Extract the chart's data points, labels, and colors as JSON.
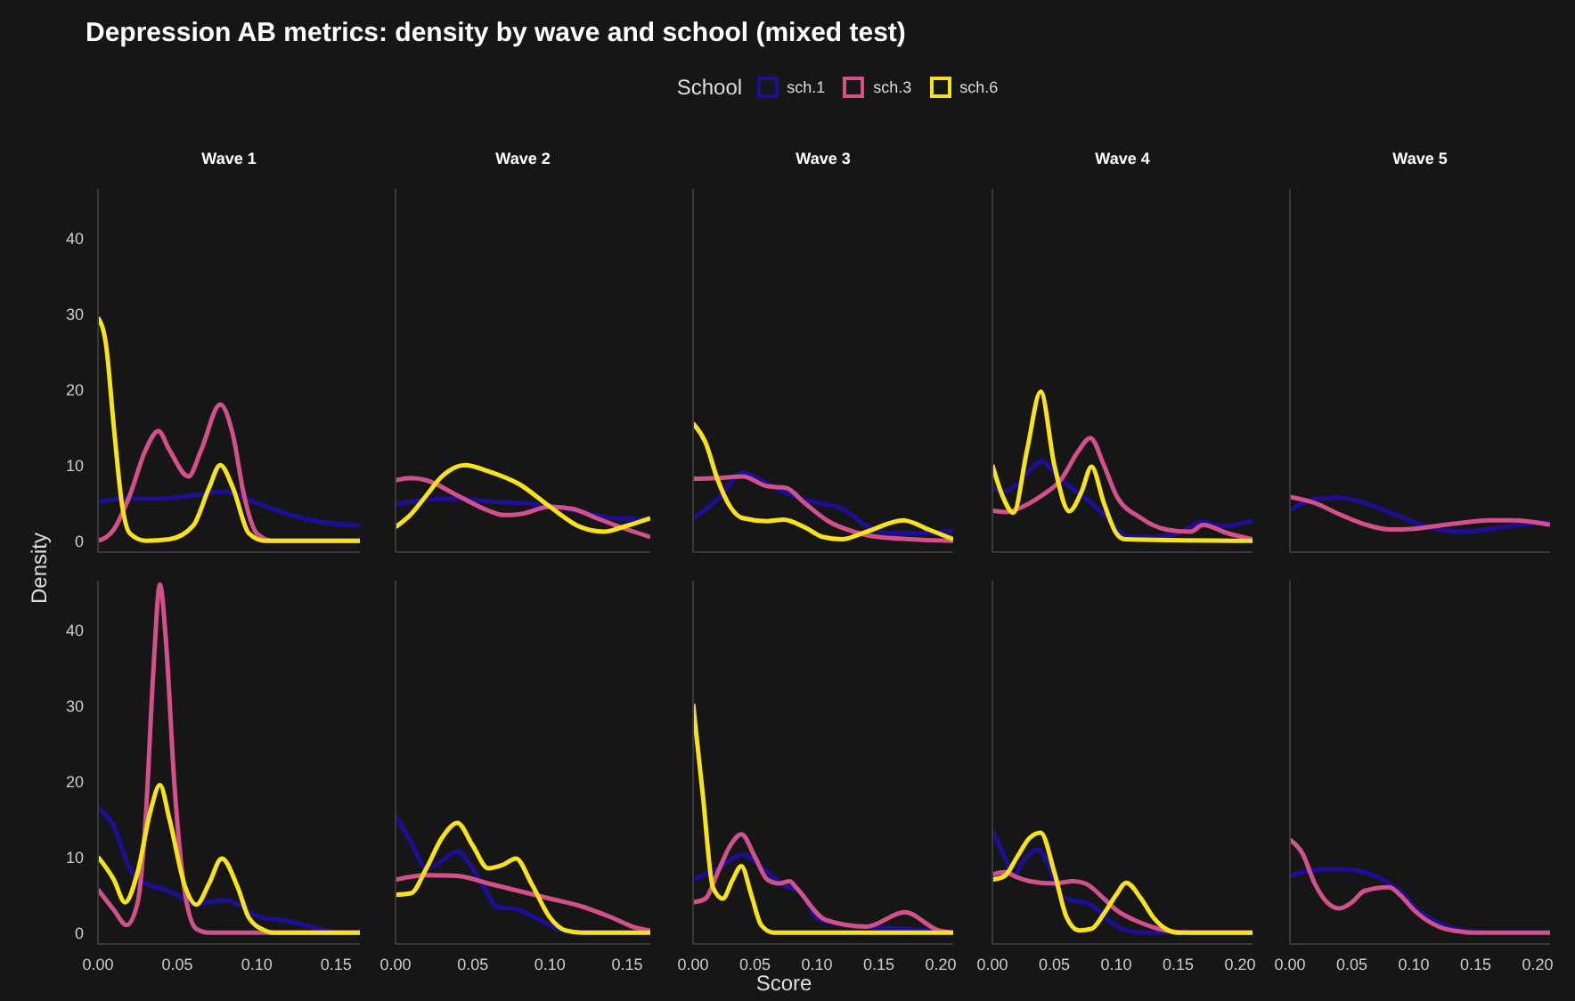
{
  "chart_data": [
    {
      "type": "line",
      "title": "Depression AB metrics: density by wave and school (mixed test)",
      "subtitle": "Wave 1",
      "ylabel": "Density",
      "legend": "top",
      "legend_title": "School",
      "marker": "none",
      "tick_labels": "y",
      "xlim": [
        0,
        0.165
      ],
      "ylim": [
        -1.5,
        46.5
      ],
      "yticks": [
        0,
        10,
        20,
        30,
        40
      ],
      "series": [
        {
          "name": "sch.1",
          "color": "#1c0f96",
          "x": [
            0,
            0.02,
            0.04,
            0.06,
            0.08,
            0.1,
            0.12,
            0.14,
            0.165
          ],
          "values": [
            5.2,
            5.6,
            5.6,
            6.0,
            6.5,
            5.0,
            3.5,
            2.5,
            2.0
          ]
        },
        {
          "name": "sch.3",
          "color": "#d2508c",
          "x": [
            0,
            0.01,
            0.02,
            0.03,
            0.038,
            0.045,
            0.057,
            0.065,
            0.077,
            0.085,
            0.092,
            0.1,
            0.11,
            0.165
          ],
          "values": [
            0,
            1.5,
            6,
            12,
            14.5,
            12,
            8.5,
            12,
            18,
            14,
            6,
            1,
            0,
            0
          ]
        },
        {
          "name": "sch.6",
          "color": "#f7e21b",
          "x": [
            0,
            0.005,
            0.01,
            0.015,
            0.02,
            0.03,
            0.045,
            0.06,
            0.07,
            0.077,
            0.085,
            0.095,
            0.105,
            0.165
          ],
          "values": [
            29.5,
            26,
            15,
            5,
            1,
            0,
            0.2,
            2,
            7,
            10,
            7,
            1,
            0,
            0
          ]
        }
      ]
    },
    {
      "type": "line",
      "subtitle": "Wave 2",
      "marker": "none",
      "tick_labels": false,
      "xlim": [
        0,
        0.165
      ],
      "ylim": [
        -1.5,
        46.5
      ],
      "series": [
        {
          "color": "#1c0f96",
          "x": [
            0,
            0.02,
            0.04,
            0.06,
            0.08,
            0.1,
            0.12,
            0.14,
            0.165
          ],
          "values": [
            4.8,
            5.4,
            5.6,
            5.2,
            5.0,
            4.6,
            3.8,
            3.0,
            2.8
          ]
        },
        {
          "color": "#d2508c",
          "x": [
            0,
            0.01,
            0.02,
            0.04,
            0.06,
            0.07,
            0.08,
            0.1,
            0.115,
            0.13,
            0.15,
            0.165
          ],
          "values": [
            8,
            8.3,
            8,
            6,
            4,
            3.4,
            3.5,
            4.5,
            4.2,
            3,
            1.5,
            0.5
          ]
        },
        {
          "color": "#f7e21b",
          "x": [
            0,
            0.01,
            0.02,
            0.03,
            0.045,
            0.06,
            0.08,
            0.1,
            0.12,
            0.135,
            0.15,
            0.165
          ],
          "values": [
            1.8,
            3.5,
            6,
            8.5,
            10,
            9.2,
            7.5,
            4.5,
            1.8,
            1.2,
            2,
            3.0
          ]
        }
      ]
    },
    {
      "type": "line",
      "subtitle": "Wave 3",
      "marker": "none",
      "tick_labels": false,
      "xlim": [
        0,
        0.21
      ],
      "ylim": [
        -1.5,
        46.5
      ],
      "series": [
        {
          "color": "#1c0f96",
          "x": [
            0,
            0.02,
            0.04,
            0.06,
            0.08,
            0.1,
            0.12,
            0.14,
            0.16,
            0.18,
            0.21
          ],
          "values": [
            3,
            5.5,
            9,
            7.5,
            6,
            5,
            4.3,
            2,
            1,
            1,
            1.3
          ]
        },
        {
          "color": "#d2508c",
          "x": [
            0,
            0.02,
            0.04,
            0.06,
            0.075,
            0.09,
            0.11,
            0.13,
            0.15,
            0.21
          ],
          "values": [
            8.2,
            8.3,
            8.5,
            7.2,
            7,
            5,
            2.5,
            1.2,
            0.5,
            0
          ]
        },
        {
          "color": "#f7e21b",
          "x": [
            0,
            0.01,
            0.02,
            0.03,
            0.04,
            0.06,
            0.073,
            0.09,
            0.105,
            0.12,
            0.14,
            0.17,
            0.19,
            0.21
          ],
          "values": [
            15.5,
            13,
            8,
            4.5,
            3,
            2.6,
            2.8,
            1.8,
            0.5,
            0.2,
            1.2,
            2.7,
            1.5,
            0.2
          ]
        }
      ]
    },
    {
      "type": "line",
      "subtitle": "Wave 4",
      "marker": "none",
      "tick_labels": false,
      "xlim": [
        0,
        0.21
      ],
      "ylim": [
        -1.5,
        46.5
      ],
      "series": [
        {
          "color": "#1c0f96",
          "x": [
            0,
            0.01,
            0.02,
            0.04,
            0.05,
            0.06,
            0.076,
            0.09,
            0.11,
            0.13,
            0.15,
            0.17,
            0.185,
            0.21
          ],
          "values": [
            7,
            6.5,
            7.5,
            10.5,
            9,
            7.5,
            5.5,
            3.5,
            0.5,
            0.5,
            1,
            2.5,
            1.9,
            2.7
          ]
        },
        {
          "color": "#d2508c",
          "x": [
            0,
            0.01,
            0.02,
            0.04,
            0.055,
            0.07,
            0.079,
            0.09,
            0.1,
            0.12,
            0.14,
            0.16,
            0.17,
            0.19,
            0.21
          ],
          "values": [
            4,
            3.8,
            4.2,
            6,
            8,
            12,
            13.6,
            10,
            6,
            3,
            1.5,
            1.2,
            2.1,
            1,
            0.2
          ]
        },
        {
          "color": "#f7e21b",
          "x": [
            0,
            0.008,
            0.017,
            0.028,
            0.039,
            0.05,
            0.062,
            0.072,
            0.08,
            0.09,
            0.1,
            0.107,
            0.21
          ],
          "values": [
            10,
            6,
            3.7,
            12,
            19.7,
            10,
            3.9,
            6.5,
            9.8,
            5,
            1,
            0.2,
            0
          ]
        }
      ]
    },
    {
      "type": "line",
      "subtitle": "Wave 5",
      "marker": "none",
      "tick_labels": false,
      "xlim": [
        0,
        0.21
      ],
      "ylim": [
        -1.5,
        46.5
      ],
      "series": [
        {
          "color": "#1c0f96",
          "x": [
            0,
            0.02,
            0.04,
            0.06,
            0.08,
            0.1,
            0.12,
            0.14,
            0.16,
            0.18,
            0.21
          ],
          "values": [
            4,
            5.5,
            5.7,
            5,
            3.8,
            2.5,
            1.5,
            1.2,
            1.5,
            2,
            2.5
          ]
        },
        {
          "color": "#d2508c",
          "x": [
            0,
            0.02,
            0.04,
            0.06,
            0.08,
            0.1,
            0.12,
            0.14,
            0.16,
            0.18,
            0.21
          ],
          "values": [
            5.8,
            5,
            3.5,
            2.2,
            1.5,
            1.6,
            2,
            2.4,
            2.7,
            2.7,
            2.1
          ]
        }
      ]
    },
    {
      "type": "line",
      "marker": "none",
      "xlim": [
        0,
        0.165
      ],
      "ylim": [
        -1.5,
        46.5
      ],
      "xticks": [
        {
          "value": 0,
          "label": "0.00"
        },
        {
          "value": 0.05,
          "label": "0.05"
        },
        {
          "value": 0.1,
          "label": "0.10"
        },
        {
          "value": 0.15,
          "label": "0.15"
        }
      ],
      "yticks": [
        0,
        10,
        20,
        30,
        40
      ],
      "series": [
        {
          "color": "#1c0f96",
          "x": [
            0,
            0.01,
            0.02,
            0.03,
            0.04,
            0.05,
            0.06,
            0.07,
            0.08,
            0.09,
            0.1,
            0.12,
            0.14,
            0.15,
            0.165
          ],
          "values": [
            16.5,
            14,
            8.5,
            6.5,
            5.8,
            5,
            3.8,
            4,
            4.3,
            3.5,
            2.2,
            1.5,
            0.5,
            0,
            0
          ]
        },
        {
          "color": "#d2508c",
          "x": [
            0,
            0.01,
            0.018,
            0.025,
            0.03,
            0.035,
            0.039,
            0.043,
            0.048,
            0.055,
            0.062,
            0.07,
            0.165
          ],
          "values": [
            5.7,
            3,
            1,
            4,
            15,
            35,
            46,
            38,
            20,
            5,
            0.5,
            0,
            0
          ]
        },
        {
          "color": "#f7e21b",
          "x": [
            0,
            0.01,
            0.017,
            0.025,
            0.033,
            0.039,
            0.045,
            0.055,
            0.062,
            0.07,
            0.078,
            0.088,
            0.095,
            0.105,
            0.11,
            0.165
          ],
          "values": [
            10,
            7,
            4,
            8,
            16,
            19.5,
            15,
            6,
            3.7,
            6.5,
            9.8,
            6,
            2,
            0.3,
            0,
            0
          ]
        }
      ]
    },
    {
      "type": "line",
      "marker": "none",
      "tick_labels": "x",
      "xlim": [
        0,
        0.165
      ],
      "ylim": [
        -1.5,
        46.5
      ],
      "xticks": [
        {
          "value": 0,
          "label": "0.00"
        },
        {
          "value": 0.05,
          "label": "0.05"
        },
        {
          "value": 0.1,
          "label": "0.10"
        },
        {
          "value": 0.15,
          "label": "0.15"
        }
      ],
      "series": [
        {
          "color": "#1c0f96",
          "x": [
            0,
            0.01,
            0.02,
            0.03,
            0.04,
            0.05,
            0.06,
            0.065,
            0.08,
            0.09,
            0.1,
            0.11,
            0.13,
            0.165
          ],
          "values": [
            15.5,
            12,
            8.5,
            9.5,
            10.7,
            8.5,
            5,
            3.5,
            3,
            2,
            1,
            0.2,
            0,
            0
          ]
        },
        {
          "color": "#d2508c",
          "x": [
            0,
            0.02,
            0.04,
            0.06,
            0.08,
            0.1,
            0.12,
            0.14,
            0.155,
            0.165
          ],
          "values": [
            7,
            7.6,
            7.5,
            6.5,
            5.5,
            4.5,
            3.5,
            2,
            0.7,
            0.3
          ]
        },
        {
          "color": "#f7e21b",
          "x": [
            0,
            0.01,
            0.02,
            0.03,
            0.04,
            0.05,
            0.06,
            0.07,
            0.078,
            0.088,
            0.1,
            0.11,
            0.12,
            0.165
          ],
          "values": [
            5,
            5.2,
            8.5,
            12.5,
            14.5,
            11.5,
            8.5,
            9,
            9.8,
            6.5,
            2,
            0.3,
            0,
            0
          ]
        }
      ]
    },
    {
      "type": "line",
      "xlabel": "Score",
      "marker": "none",
      "tick_labels": "x",
      "xlim": [
        0,
        0.21
      ],
      "ylim": [
        -1.5,
        46.5
      ],
      "xticks": [
        {
          "value": 0,
          "label": "0.00"
        },
        {
          "value": 0.05,
          "label": "0.05"
        },
        {
          "value": 0.1,
          "label": "0.10"
        },
        {
          "value": 0.15,
          "label": "0.15"
        },
        {
          "value": 0.2,
          "label": "0.20"
        }
      ],
      "series": [
        {
          "color": "#1c0f96",
          "x": [
            0,
            0.02,
            0.04,
            0.06,
            0.073,
            0.087,
            0.102,
            0.145,
            0.17,
            0.21
          ],
          "values": [
            7,
            8.5,
            10.3,
            8,
            6.3,
            5.3,
            1.7,
            0.7,
            0.5,
            0
          ]
        },
        {
          "color": "#d2508c",
          "x": [
            0,
            0.01,
            0.02,
            0.03,
            0.039,
            0.05,
            0.06,
            0.07,
            0.078,
            0.083,
            0.107,
            0.14,
            0.171,
            0.198,
            0.21
          ],
          "values": [
            4,
            4.5,
            8,
            11.5,
            13,
            10,
            7,
            6.5,
            6.8,
            6,
            1.7,
            0.8,
            2.7,
            0.3,
            0
          ]
        },
        {
          "color": "#f7e21b",
          "x": [
            0,
            0.008,
            0.016,
            0.024,
            0.032,
            0.039,
            0.047,
            0.055,
            0.065,
            0.21
          ],
          "values": [
            30.2,
            18,
            6,
            4.5,
            7,
            8.8,
            5,
            1,
            0,
            0
          ]
        }
      ]
    },
    {
      "type": "line",
      "marker": "none",
      "tick_labels": "x",
      "xlim": [
        0,
        0.21
      ],
      "ylim": [
        -1.5,
        46.5
      ],
      "xticks": [
        {
          "value": 0,
          "label": "0.00"
        },
        {
          "value": 0.05,
          "label": "0.05"
        },
        {
          "value": 0.1,
          "label": "0.10"
        },
        {
          "value": 0.15,
          "label": "0.15"
        },
        {
          "value": 0.2,
          "label": "0.20"
        }
      ],
      "yticks": [
        0,
        10,
        20,
        30,
        40
      ],
      "series": [
        {
          "color": "#1c0f96",
          "x": [
            0,
            0.01,
            0.017,
            0.025,
            0.037,
            0.045,
            0.055,
            0.065,
            0.075,
            0.085,
            0.095,
            0.105,
            0.12,
            0.21
          ],
          "values": [
            13.5,
            10,
            7.5,
            9.5,
            11,
            9,
            5,
            4.2,
            4,
            3,
            1.5,
            0.5,
            0,
            0
          ]
        },
        {
          "color": "#d2508c",
          "x": [
            0,
            0.01,
            0.02,
            0.03,
            0.05,
            0.065,
            0.075,
            0.09,
            0.1,
            0.12,
            0.14,
            0.16,
            0.21
          ],
          "values": [
            7.7,
            8,
            7.3,
            6.8,
            6.5,
            6.8,
            6.5,
            4.5,
            3,
            1.3,
            0.3,
            0,
            0
          ]
        },
        {
          "color": "#f7e21b",
          "x": [
            0,
            0.01,
            0.02,
            0.03,
            0.039,
            0.05,
            0.06,
            0.07,
            0.08,
            0.09,
            0.1,
            0.108,
            0.12,
            0.13,
            0.14,
            0.15,
            0.21
          ],
          "values": [
            7,
            7.5,
            10,
            12.5,
            13.2,
            8,
            2,
            0.3,
            0.5,
            2.5,
            5,
            6.6,
            4.5,
            2,
            0.5,
            0,
            0
          ]
        }
      ]
    },
    {
      "type": "line",
      "marker": "none",
      "tick_labels": "x",
      "xlim": [
        0,
        0.21
      ],
      "ylim": [
        -1.5,
        46.5
      ],
      "xticks": [
        {
          "value": 0,
          "label": "0.00"
        },
        {
          "value": 0.05,
          "label": "0.05"
        },
        {
          "value": 0.1,
          "label": "0.10"
        },
        {
          "value": 0.15,
          "label": "0.15"
        },
        {
          "value": 0.2,
          "label": "0.20"
        }
      ],
      "yticks": [
        0,
        10,
        20,
        30,
        40
      ],
      "series": [
        {
          "color": "#1c0f96",
          "x": [
            0,
            0.02,
            0.04,
            0.06,
            0.08,
            0.09,
            0.1,
            0.12,
            0.14,
            0.16,
            0.21
          ],
          "values": [
            7.5,
            8.3,
            8.4,
            8,
            6.5,
            5.3,
            3.5,
            1.3,
            0.3,
            0,
            0
          ]
        },
        {
          "color": "#d2508c",
          "x": [
            0,
            0.01,
            0.02,
            0.03,
            0.04,
            0.05,
            0.06,
            0.08,
            0.09,
            0.1,
            0.12,
            0.14,
            0.15,
            0.21
          ],
          "values": [
            12.3,
            10.5,
            6.5,
            4,
            3.2,
            4,
            5.5,
            6,
            4.8,
            3,
            0.8,
            0.1,
            0,
            0
          ]
        }
      ]
    }
  ]
}
